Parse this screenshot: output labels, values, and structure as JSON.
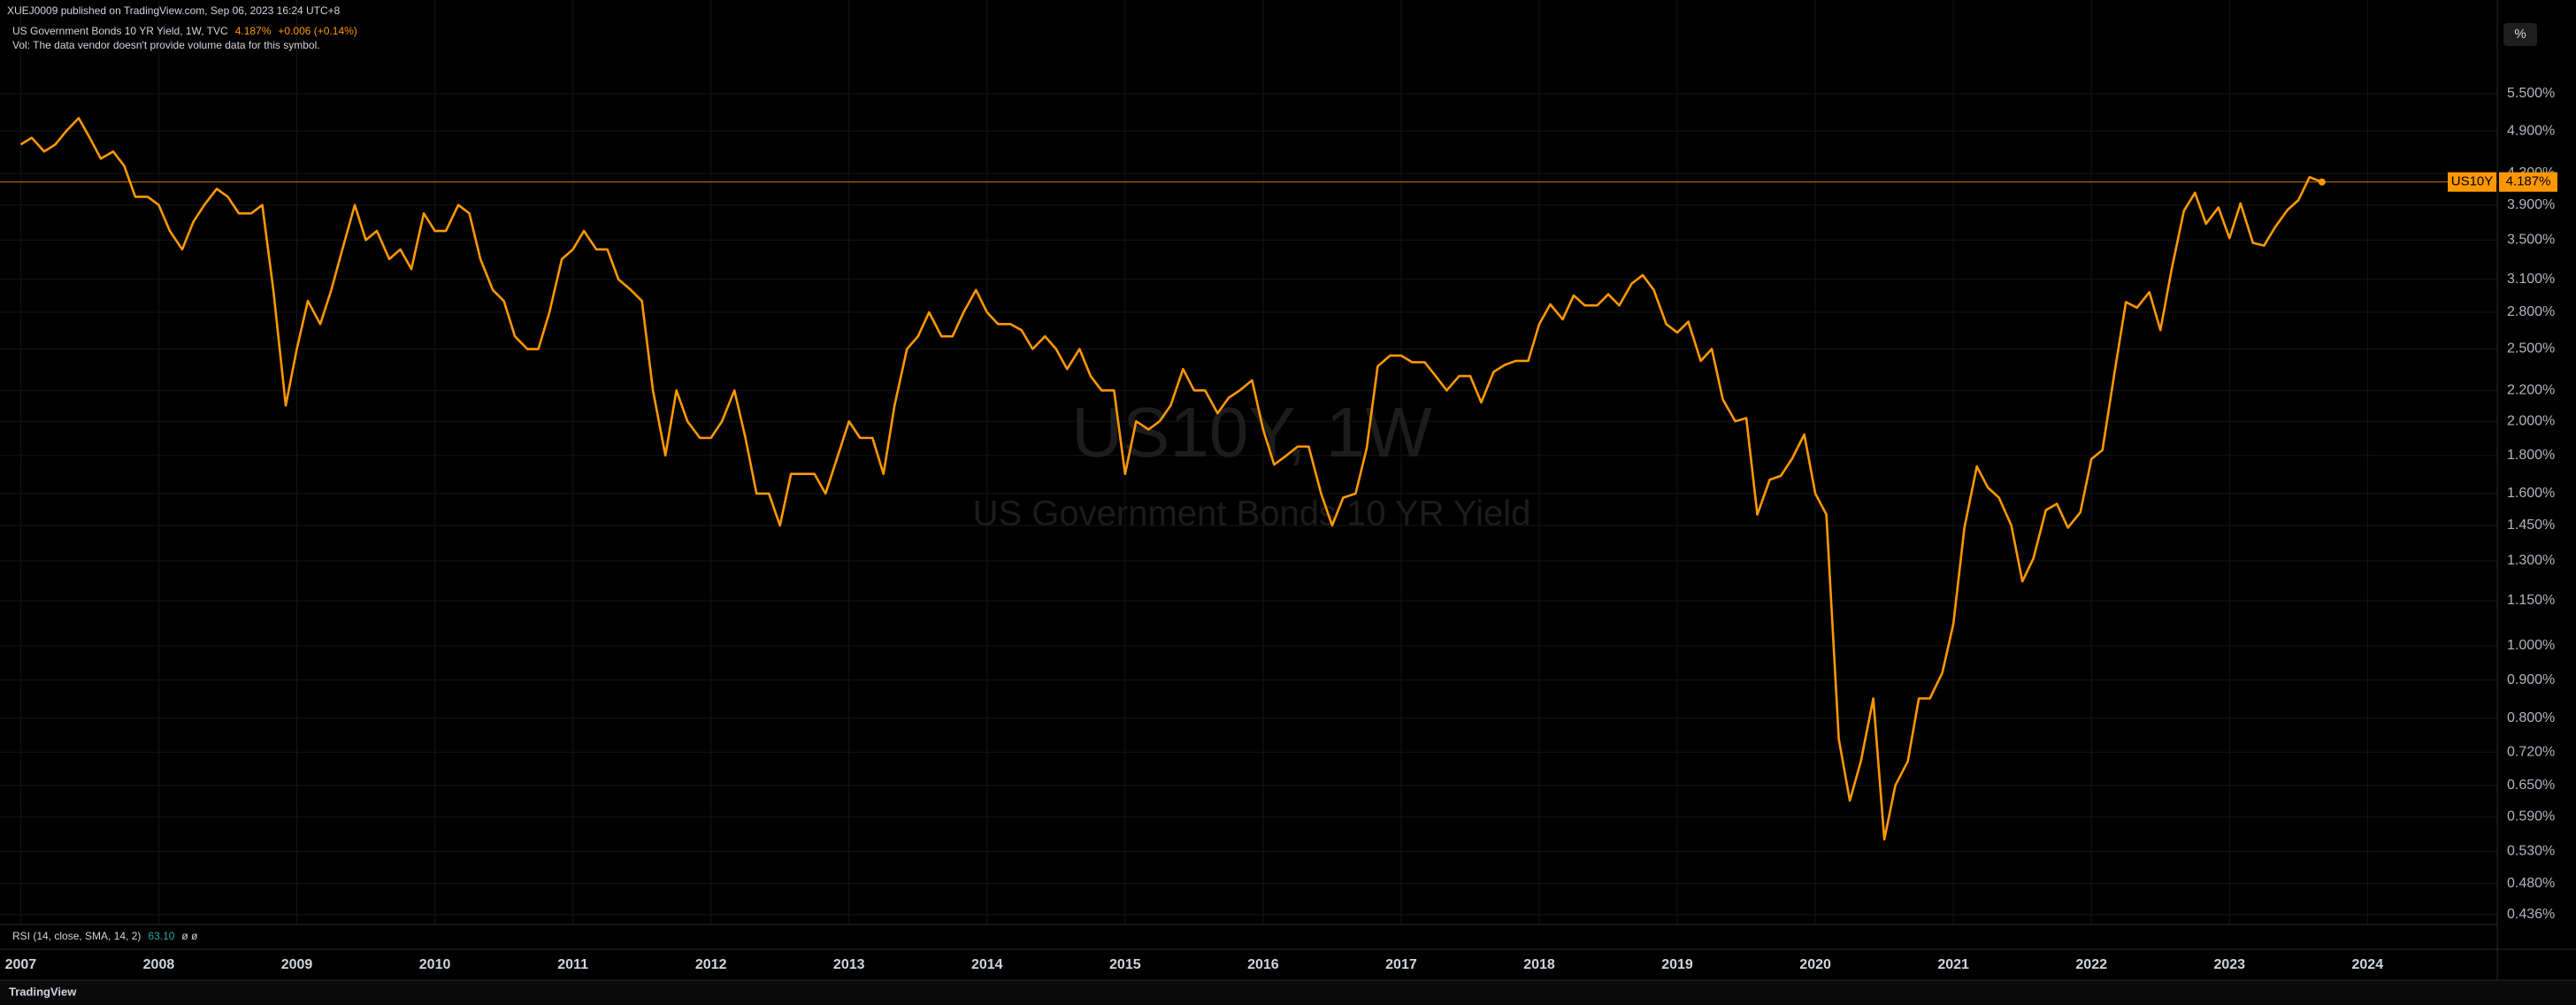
{
  "header": {
    "published": "XUEJ0009 published on TradingView.com, Sep 06, 2023 16:24 UTC+8",
    "symbol": "US Government Bonds 10 YR Yield, 1W, TVC",
    "change": "+0.006 (+0.14%)",
    "volume_note": "Vol: The data vendor doesn't provide volume data for this symbol."
  },
  "watermark": {
    "title": "US10Y, 1W",
    "subtitle": "US Government Bonds 10 YR Yield"
  },
  "toolbar": {
    "scale_button": "%"
  },
  "indicator": {
    "label": "RSI (14, close, SMA, 14, 2)",
    "value": "63.10",
    "extra": "ø ø"
  },
  "footer": {
    "brand": "TradingView"
  },
  "chart_data": {
    "type": "line",
    "log_scale": true,
    "grid": true,
    "x": [
      2007,
      2007.08,
      2007.17,
      2007.25,
      2007.33,
      2007.42,
      2007.5,
      2007.58,
      2007.67,
      2007.75,
      2007.83,
      2007.92,
      2008,
      2008.08,
      2008.17,
      2008.25,
      2008.33,
      2008.42,
      2008.5,
      2008.58,
      2008.67,
      2008.75,
      2008.83,
      2008.92,
      2009,
      2009.08,
      2009.17,
      2009.25,
      2009.33,
      2009.42,
      2009.5,
      2009.58,
      2009.67,
      2009.75,
      2009.83,
      2009.92,
      2010,
      2010.08,
      2010.17,
      2010.25,
      2010.33,
      2010.42,
      2010.5,
      2010.58,
      2010.67,
      2010.75,
      2010.83,
      2010.92,
      2011,
      2011.08,
      2011.17,
      2011.25,
      2011.33,
      2011.42,
      2011.5,
      2011.58,
      2011.67,
      2011.75,
      2011.83,
      2011.92,
      2012,
      2012.08,
      2012.17,
      2012.25,
      2012.33,
      2012.42,
      2012.5,
      2012.58,
      2012.67,
      2012.75,
      2012.83,
      2012.92,
      2013,
      2013.08,
      2013.17,
      2013.25,
      2013.33,
      2013.42,
      2013.5,
      2013.58,
      2013.67,
      2013.75,
      2013.83,
      2013.92,
      2014,
      2014.08,
      2014.17,
      2014.25,
      2014.33,
      2014.42,
      2014.5,
      2014.58,
      2014.67,
      2014.75,
      2014.83,
      2014.92,
      2015,
      2015.08,
      2015.17,
      2015.25,
      2015.33,
      2015.42,
      2015.5,
      2015.58,
      2015.67,
      2015.75,
      2015.83,
      2015.92,
      2016,
      2016.08,
      2016.17,
      2016.25,
      2016.33,
      2016.42,
      2016.5,
      2016.58,
      2016.67,
      2016.75,
      2016.83,
      2016.92,
      2017,
      2017.08,
      2017.17,
      2017.25,
      2017.33,
      2017.42,
      2017.5,
      2017.58,
      2017.67,
      2017.75,
      2017.83,
      2017.92,
      2018,
      2018.08,
      2018.17,
      2018.25,
      2018.33,
      2018.42,
      2018.5,
      2018.58,
      2018.67,
      2018.75,
      2018.83,
      2018.92,
      2019,
      2019.08,
      2019.17,
      2019.25,
      2019.33,
      2019.42,
      2019.5,
      2019.58,
      2019.67,
      2019.75,
      2019.83,
      2019.92,
      2020,
      2020.08,
      2020.17,
      2020.25,
      2020.33,
      2020.42,
      2020.5,
      2020.58,
      2020.67,
      2020.75,
      2020.83,
      2020.92,
      2021,
      2021.08,
      2021.17,
      2021.25,
      2021.33,
      2021.42,
      2021.5,
      2021.58,
      2021.67,
      2021.75,
      2021.83,
      2021.92,
      2022,
      2022.08,
      2022.17,
      2022.25,
      2022.33,
      2022.42,
      2022.5,
      2022.58,
      2022.67,
      2022.75,
      2022.83,
      2022.92,
      2023,
      2023.08,
      2023.17,
      2023.25,
      2023.33,
      2023.42,
      2023.5,
      2023.58,
      2023.67
    ],
    "series": [
      {
        "name": "US10Y",
        "color": "#ff9800",
        "values": [
          4.7,
          4.8,
          4.6,
          4.7,
          4.9,
          5.1,
          4.8,
          4.5,
          4.6,
          4.4,
          4.0,
          4.0,
          3.9,
          3.6,
          3.4,
          3.7,
          3.9,
          4.1,
          4.0,
          3.8,
          3.8,
          3.9,
          3.0,
          2.1,
          2.5,
          2.9,
          2.7,
          3.0,
          3.4,
          3.9,
          3.5,
          3.6,
          3.3,
          3.4,
          3.2,
          3.8,
          3.6,
          3.6,
          3.9,
          3.8,
          3.3,
          3.0,
          2.9,
          2.6,
          2.5,
          2.5,
          2.8,
          3.3,
          3.4,
          3.6,
          3.4,
          3.4,
          3.1,
          3.0,
          2.9,
          2.2,
          1.8,
          2.2,
          2.0,
          1.9,
          1.9,
          2.0,
          2.2,
          1.9,
          1.6,
          1.6,
          1.45,
          1.7,
          1.7,
          1.7,
          1.6,
          1.8,
          2.0,
          1.9,
          1.9,
          1.7,
          2.1,
          2.5,
          2.6,
          2.8,
          2.6,
          2.6,
          2.8,
          3.0,
          2.8,
          2.7,
          2.7,
          2.65,
          2.5,
          2.6,
          2.5,
          2.35,
          2.5,
          2.3,
          2.2,
          2.2,
          1.7,
          2.0,
          1.95,
          2.0,
          2.1,
          2.35,
          2.2,
          2.2,
          2.05,
          2.15,
          2.2,
          2.27,
          1.95,
          1.75,
          1.8,
          1.85,
          1.85,
          1.6,
          1.45,
          1.58,
          1.6,
          1.84,
          2.37,
          2.45,
          2.45,
          2.4,
          2.4,
          2.3,
          2.2,
          2.3,
          2.3,
          2.12,
          2.33,
          2.38,
          2.41,
          2.41,
          2.7,
          2.87,
          2.74,
          2.95,
          2.86,
          2.86,
          2.96,
          2.86,
          3.06,
          3.14,
          3.0,
          2.7,
          2.63,
          2.72,
          2.41,
          2.5,
          2.14,
          2.0,
          2.02,
          1.5,
          1.67,
          1.69,
          1.78,
          1.92,
          1.6,
          1.5,
          0.75,
          0.62,
          0.7,
          0.85,
          0.55,
          0.65,
          0.7,
          0.85,
          0.85,
          0.92,
          1.07,
          1.44,
          1.74,
          1.63,
          1.58,
          1.45,
          1.22,
          1.31,
          1.52,
          1.55,
          1.44,
          1.51,
          1.78,
          1.83,
          2.34,
          2.89,
          2.84,
          2.98,
          2.65,
          3.19,
          3.83,
          4.05,
          3.68,
          3.87,
          3.52,
          3.92,
          3.47,
          3.44,
          3.64,
          3.84,
          3.96,
          4.25,
          4.187
        ]
      }
    ],
    "last_price": {
      "value": 4.187,
      "label": "4.187%"
    },
    "xlim": [
      2006.85,
      2024.94
    ],
    "xticks": [
      2007,
      2008,
      2009,
      2010,
      2011,
      2012,
      2013,
      2014,
      2015,
      2016,
      2017,
      2018,
      2019,
      2020,
      2021,
      2022,
      2023,
      2024
    ],
    "ylim": [
      0.423,
      6.98
    ],
    "yticks": [
      {
        "value": 5.5,
        "label": "5.500%"
      },
      {
        "value": 4.9,
        "label": "4.900%"
      },
      {
        "value": 4.3,
        "label": "4.300%"
      },
      {
        "value": 3.9,
        "label": "3.900%"
      },
      {
        "value": 3.5,
        "label": "3.500%"
      },
      {
        "value": 3.1,
        "label": "3.100%"
      },
      {
        "value": 2.8,
        "label": "2.800%"
      },
      {
        "value": 2.5,
        "label": "2.500%"
      },
      {
        "value": 2.2,
        "label": "2.200%"
      },
      {
        "value": 2.0,
        "label": "2.000%"
      },
      {
        "value": 1.8,
        "label": "1.800%"
      },
      {
        "value": 1.6,
        "label": "1.600%"
      },
      {
        "value": 1.45,
        "label": "1.450%"
      },
      {
        "value": 1.3,
        "label": "1.300%"
      },
      {
        "value": 1.15,
        "label": "1.150%"
      },
      {
        "value": 1.0,
        "label": "1.000%"
      },
      {
        "value": 0.9,
        "label": "0.900%"
      },
      {
        "value": 0.8,
        "label": "0.800%"
      },
      {
        "value": 0.72,
        "label": "0.720%"
      },
      {
        "value": 0.65,
        "label": "0.650%"
      },
      {
        "value": 0.59,
        "label": "0.590%"
      },
      {
        "value": 0.53,
        "label": "0.530%"
      },
      {
        "value": 0.48,
        "label": "0.480%"
      },
      {
        "value": 0.436,
        "label": "0.436%"
      }
    ]
  }
}
